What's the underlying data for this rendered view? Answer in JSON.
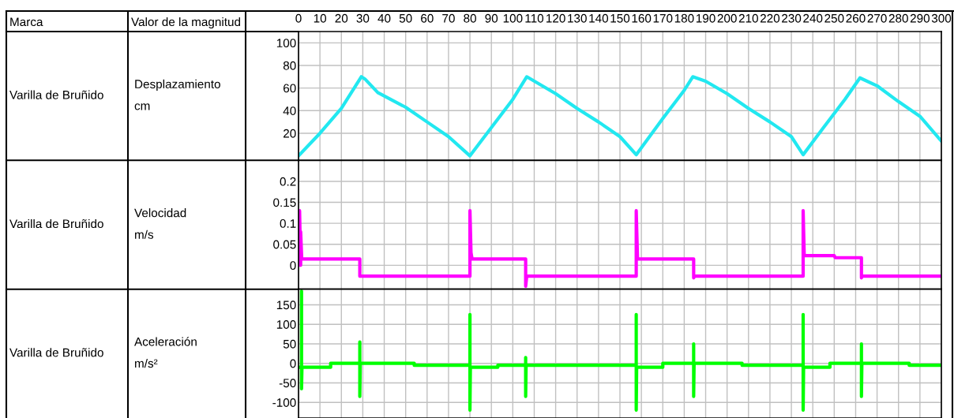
{
  "chart_data": [
    {
      "type": "line",
      "ylabel": "Desplazamiento\ncm",
      "annotations": [
        "Marca",
        "Valor de la magnitud",
        "Varilla de Bruñido"
      ],
      "xlim": [
        0,
        300
      ],
      "xticks": [
        0,
        10,
        20,
        30,
        40,
        50,
        60,
        70,
        80,
        90,
        100,
        110,
        120,
        130,
        140,
        150,
        160,
        170,
        180,
        190,
        200,
        210,
        220,
        230,
        240,
        250,
        260,
        270,
        280,
        290,
        300
      ],
      "ylim": [
        -4,
        110
      ],
      "yticks": [
        20,
        40,
        60,
        80,
        100
      ],
      "grid": true,
      "series": [
        {
          "color": "#22e8f0",
          "x": [
            0,
            10,
            20,
            29.3,
            31,
            37,
            50,
            60,
            70,
            80,
            90,
            100,
            106.5,
            120,
            130,
            140,
            150,
            157.6,
            170,
            180,
            184,
            190,
            200,
            210,
            220,
            230,
            235.5,
            245,
            255,
            262,
            270,
            280,
            290,
            300
          ],
          "values": [
            0,
            20,
            42,
            70,
            68,
            56,
            43,
            30,
            17,
            0,
            25,
            50,
            70,
            55,
            42,
            30,
            17,
            1,
            33,
            58,
            70,
            66,
            55,
            42,
            30,
            17,
            1,
            25,
            50,
            69,
            62,
            48,
            35,
            13
          ]
        }
      ]
    },
    {
      "type": "line",
      "ylabel": "Velocidad\nm/s",
      "annotations": [
        "Varilla de Bruñido"
      ],
      "xlim": [
        0,
        300
      ],
      "ylim": [
        -0.057,
        0.25
      ],
      "yticks": [
        0,
        0.05,
        0.1,
        0.15,
        0.2
      ],
      "grid": true,
      "tick_labels": "y",
      "series": [
        {
          "color": "#ff00ff",
          "x": [
            0,
            0.5,
            1,
            1,
            1.5,
            28.6,
            28.6,
            80,
            80,
            80.5,
            81,
            106,
            106,
            106.5,
            157.6,
            157.6,
            158.2,
            184.4,
            184.4,
            184.8,
            235.5,
            235.5,
            236,
            250,
            250.5,
            262.7,
            262.7,
            263,
            300
          ],
          "values": [
            0,
            0.13,
            0,
            0.08,
            0.015,
            0.015,
            -0.026,
            -0.026,
            0.13,
            0.03,
            0.015,
            0.015,
            -0.05,
            -0.026,
            -0.026,
            0.13,
            0.015,
            0.015,
            -0.03,
            -0.026,
            -0.026,
            0.13,
            0.023,
            0.023,
            0.018,
            0.018,
            -0.03,
            -0.026,
            -0.026
          ]
        }
      ]
    },
    {
      "type": "line",
      "ylabel": "Aceleración\nm/s²",
      "annotations": [
        "Varilla de Bruñido"
      ],
      "xlim": [
        0,
        300
      ],
      "ylim": [
        -140,
        190
      ],
      "yticks": [
        -100,
        -50,
        0,
        50,
        100,
        150
      ],
      "grid": true,
      "tick_labels": "y",
      "series": [
        {
          "color": "#00ff00",
          "x": [
            0,
            1.4,
            1.4,
            1.4,
            1.6,
            15,
            15,
            28.6,
            28.6,
            28.6,
            28.8,
            54,
            54,
            80,
            80,
            80,
            80.2,
            93,
            93,
            106,
            106,
            106,
            106.2,
            157.6,
            157.6,
            157.6,
            157.8,
            170,
            170,
            184.4,
            184.4,
            184.4,
            184.6,
            207,
            207,
            235.5,
            235.5,
            235.5,
            235.7,
            248,
            248,
            262.7,
            262.7,
            262.7,
            262.9,
            285,
            285,
            300
          ],
          "values": [
            -10,
            -10,
            185,
            -65,
            -10,
            -10,
            0,
            0,
            55,
            -85,
            0,
            0,
            -5,
            -5,
            125,
            -120,
            -10,
            -10,
            -5,
            -5,
            15,
            -85,
            -5,
            -5,
            125,
            -120,
            -10,
            -10,
            0,
            0,
            50,
            -85,
            0,
            0,
            -5,
            -5,
            125,
            -120,
            -10,
            -10,
            0,
            0,
            50,
            -85,
            0,
            0,
            -5,
            -5
          ]
        }
      ]
    }
  ]
}
